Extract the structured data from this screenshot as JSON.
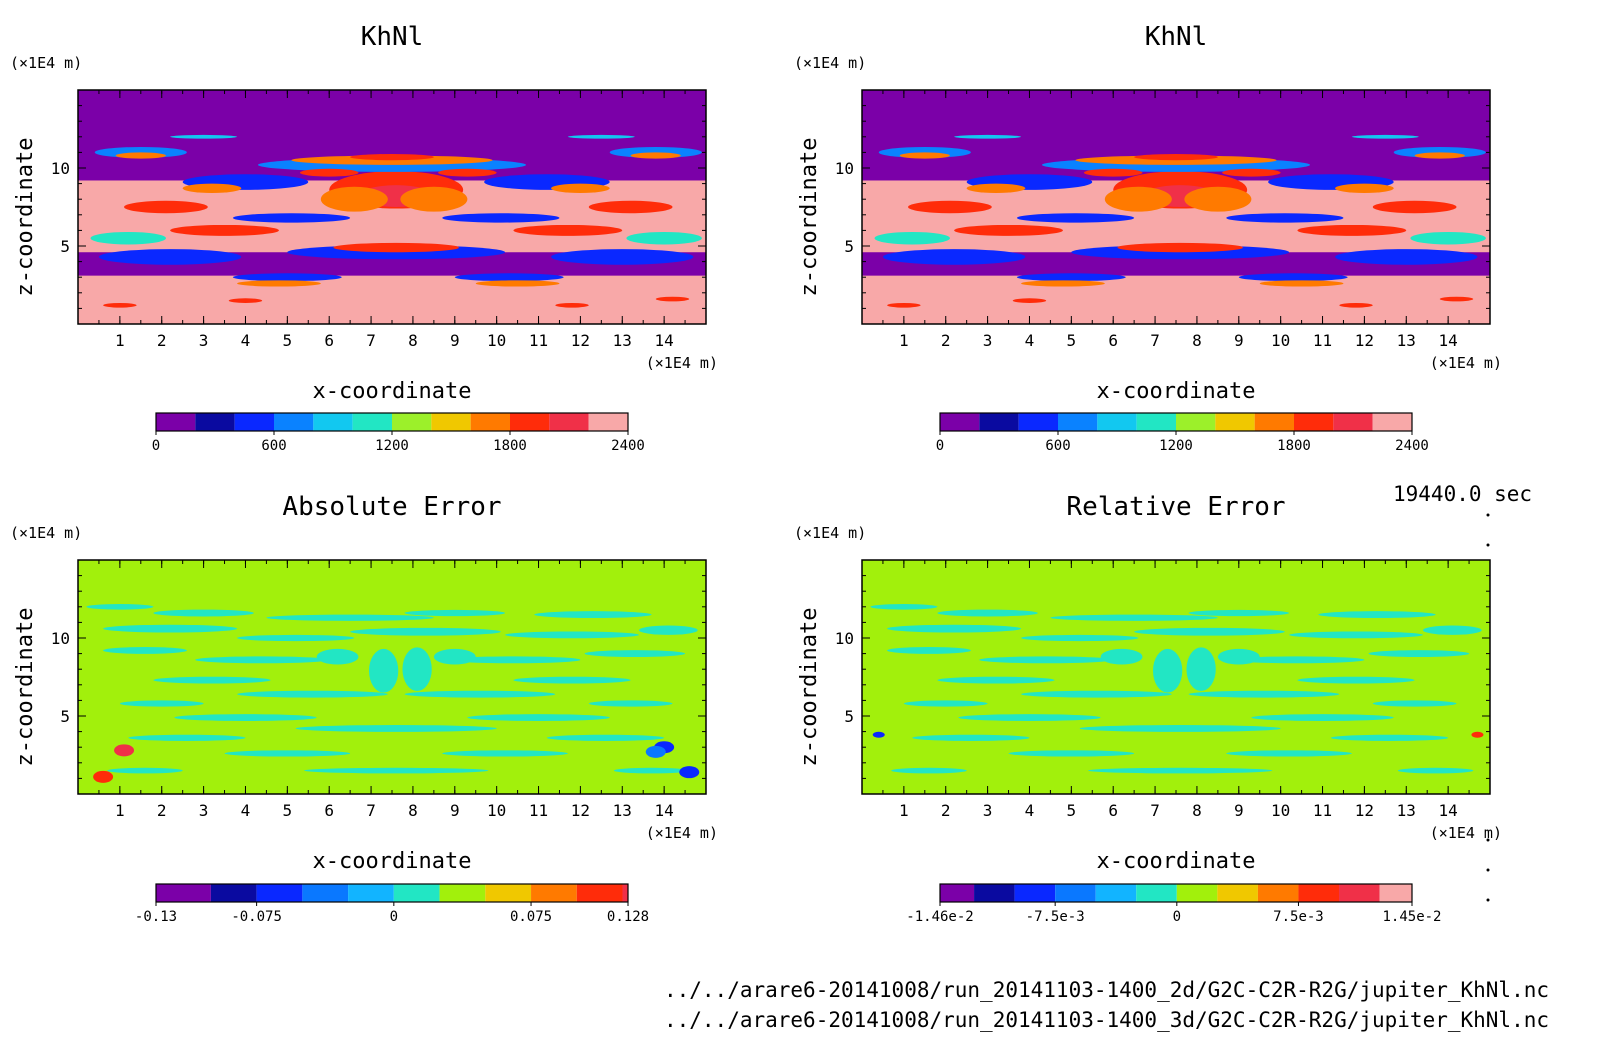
{
  "time_label": "19440.0 sec",
  "files": [
    "../../arare6-20141008/run_20141103-1400_2d/G2C-C2R-R2G/jupiter_KhNl.nc",
    "../../arare6-20141008/run_20141103-1400_3d/G2C-C2R-R2G/jupiter_KhNl.nc"
  ],
  "colors": {
    "khnl_levels": [
      "#7b00a8",
      "#0a0aa0",
      "#0a28ff",
      "#0a82ff",
      "#12c8f0",
      "#22e6c4",
      "#9cf02a",
      "#f0c800",
      "#ff7a00",
      "#ff2c0a",
      "#f03048",
      "#f8a8a8"
    ],
    "error_levels": [
      "#7b00a8",
      "#0a0aa0",
      "#0a28ff",
      "#0a78ff",
      "#12b4ff",
      "#22e6c4",
      "#a2f00c",
      "#f0c800",
      "#ff7a00",
      "#ff2c0a",
      "#f03048",
      "#f8a8a8"
    ]
  },
  "chart_data": [
    {
      "type": "heatmap",
      "title": "KhNl",
      "xlabel": "x-coordinate",
      "ylabel": "z-coordinate",
      "x_unit": "(×1E4 m)",
      "y_unit": "(×1E4 m)",
      "xlim": [
        0,
        15
      ],
      "ylim": [
        0,
        15
      ],
      "x_ticks": [
        1,
        2,
        3,
        4,
        5,
        6,
        7,
        8,
        9,
        10,
        11,
        12,
        13,
        14
      ],
      "y_ticks": [
        5,
        10
      ],
      "colorbar": {
        "levels": [
          0,
          200,
          400,
          600,
          800,
          1000,
          1200,
          1400,
          1600,
          1800,
          2000,
          2200,
          2400
        ],
        "labels": [
          "0",
          "600",
          "1200",
          "1800",
          "2400"
        ],
        "label_values": [
          0,
          600,
          1200,
          1800,
          2400
        ]
      },
      "field": "khnl"
    },
    {
      "type": "heatmap",
      "title": "KhNl",
      "xlabel": "x-coordinate",
      "ylabel": "z-coordinate",
      "x_unit": "(×1E4 m)",
      "y_unit": "(×1E4 m)",
      "xlim": [
        0,
        15
      ],
      "ylim": [
        0,
        15
      ],
      "x_ticks": [
        1,
        2,
        3,
        4,
        5,
        6,
        7,
        8,
        9,
        10,
        11,
        12,
        13,
        14
      ],
      "y_ticks": [
        5,
        10
      ],
      "colorbar": {
        "levels": [
          0,
          200,
          400,
          600,
          800,
          1000,
          1200,
          1400,
          1600,
          1800,
          2000,
          2200,
          2400
        ],
        "labels": [
          "0",
          "600",
          "1200",
          "1800",
          "2400"
        ],
        "label_values": [
          0,
          600,
          1200,
          1800,
          2400
        ]
      },
      "field": "khnl"
    },
    {
      "type": "heatmap",
      "title": "Absolute Error",
      "xlabel": "x-coordinate",
      "ylabel": "z-coordinate",
      "x_unit": "(×1E4 m)",
      "y_unit": "(×1E4 m)",
      "xlim": [
        0,
        15
      ],
      "ylim": [
        0,
        15
      ],
      "x_ticks": [
        1,
        2,
        3,
        4,
        5,
        6,
        7,
        8,
        9,
        10,
        11,
        12,
        13,
        14
      ],
      "y_ticks": [
        5,
        10
      ],
      "colorbar": {
        "levels": [
          -0.13,
          -0.1,
          -0.075,
          -0.05,
          -0.025,
          0,
          0.025,
          0.05,
          0.075,
          0.1,
          0.125,
          0.128
        ],
        "labels": [
          "-0.13",
          "-0.075",
          "0",
          "0.075",
          "0.128"
        ],
        "label_values": [
          -0.13,
          -0.075,
          0,
          0.075,
          0.128
        ]
      },
      "field": "abs"
    },
    {
      "type": "heatmap",
      "title": "Relative Error",
      "xlabel": "x-coordinate",
      "ylabel": "z-coordinate",
      "x_unit": "(×1E4 m)",
      "y_unit": "(×1E4 m)",
      "xlim": [
        0,
        15
      ],
      "ylim": [
        0,
        15
      ],
      "x_ticks": [
        1,
        2,
        3,
        4,
        5,
        6,
        7,
        8,
        9,
        10,
        11,
        12,
        13,
        14
      ],
      "y_ticks": [
        5,
        10
      ],
      "colorbar": {
        "levels": [
          -0.0146,
          -0.0125,
          -0.01,
          -0.0075,
          -0.005,
          -0.0025,
          0,
          0.0025,
          0.005,
          0.0075,
          0.01,
          0.0125,
          0.0145
        ],
        "labels": [
          "-1.46e-2",
          "-7.5e-3",
          "0",
          "7.5e-3",
          "1.45e-2"
        ],
        "label_values": [
          -0.0146,
          -0.0075,
          0,
          0.0075,
          0.0145
        ]
      },
      "field": "rel"
    }
  ]
}
